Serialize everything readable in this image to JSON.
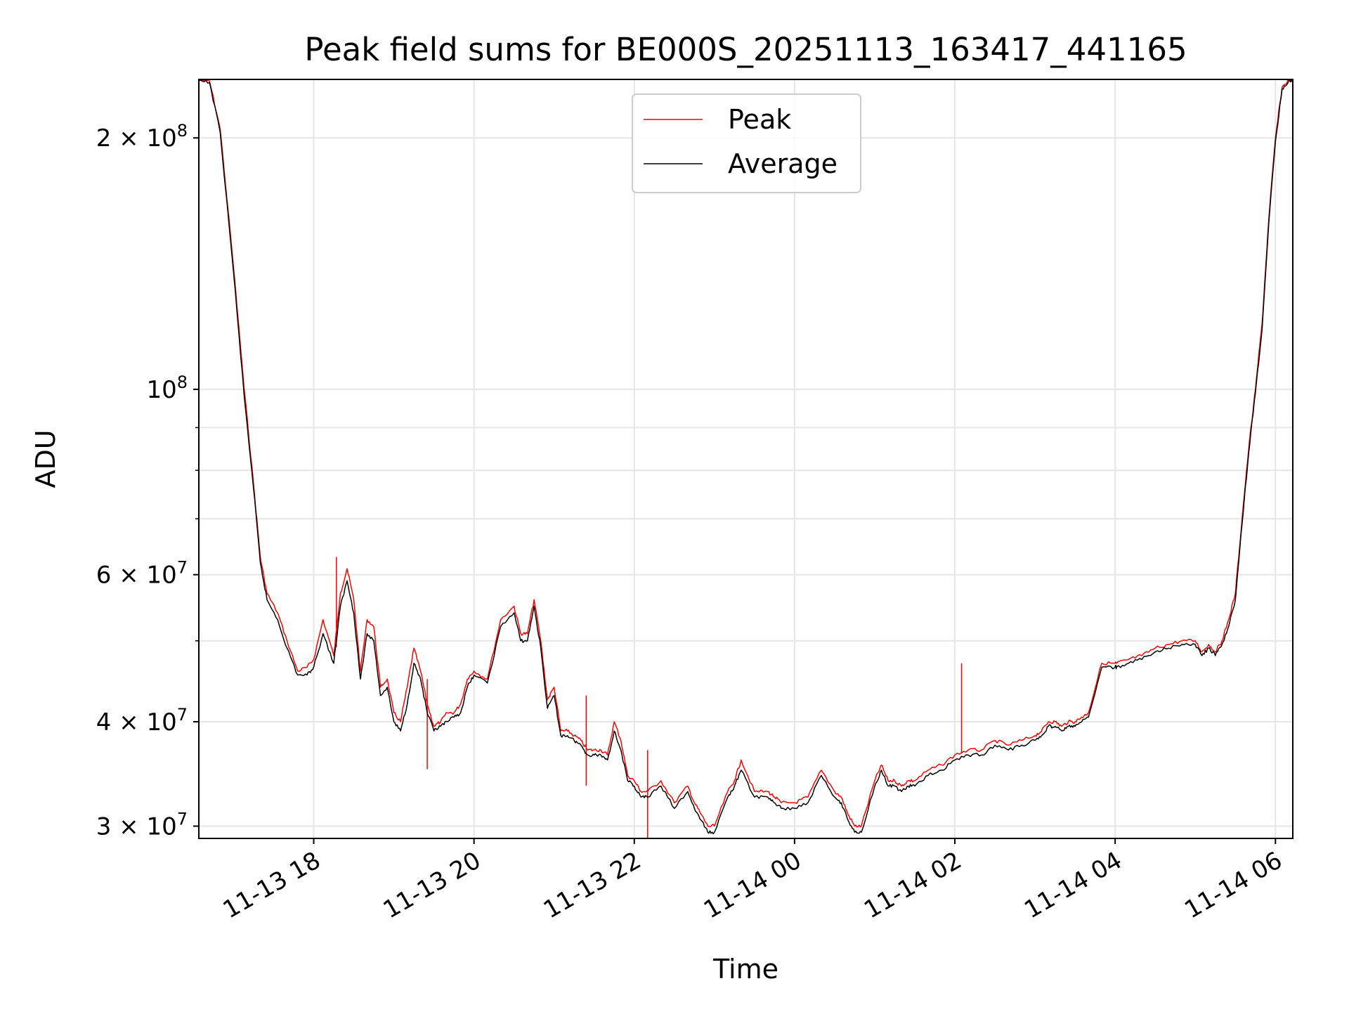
{
  "chart_data": {
    "type": "line",
    "title": "Peak field sums for BE000S_20251113_163417_441165",
    "xlabel": "Time",
    "ylabel": "ADU",
    "yscale": "log",
    "grid": true,
    "legend_position": "top-center",
    "xlim": [
      "11-13 16:34",
      "11-14 06:13"
    ],
    "ylim": [
      29000000,
      235000000
    ],
    "x_ticks": [
      "11-13 18",
      "11-13 20",
      "11-13 22",
      "11-14 00",
      "11-14 02",
      "11-14 04",
      "11-14 06"
    ],
    "y_ticks": [
      {
        "value": 30000000,
        "mantissa": "3",
        "exponent": "7"
      },
      {
        "value": 40000000,
        "mantissa": "4",
        "exponent": "7"
      },
      {
        "value": 60000000,
        "mantissa": "6",
        "exponent": "7"
      },
      {
        "value": 100000000,
        "mantissa": "",
        "exponent": "8"
      },
      {
        "value": 200000000,
        "mantissa": "2",
        "exponent": "8"
      }
    ],
    "series": [
      {
        "name": "Peak",
        "color": "#ff0000",
        "x": [
          "11-13 16:34",
          "11-13 16:42",
          "11-13 16:50",
          "11-13 17:00",
          "11-13 17:08",
          "11-13 17:15",
          "11-13 17:20",
          "11-13 17:25",
          "11-13 17:33",
          "11-13 17:40",
          "11-13 17:48",
          "11-13 17:55",
          "11-13 18:00",
          "11-13 18:07",
          "11-13 18:15",
          "11-13 18:20",
          "11-13 18:25",
          "11-13 18:30",
          "11-13 18:35",
          "11-13 18:40",
          "11-13 18:45",
          "11-13 18:50",
          "11-13 18:55",
          "11-13 19:00",
          "11-13 19:05",
          "11-13 19:10",
          "11-13 19:15",
          "11-13 19:20",
          "11-13 19:25",
          "11-13 19:30",
          "11-13 19:35",
          "11-13 19:40",
          "11-13 19:45",
          "11-13 19:50",
          "11-13 19:55",
          "11-13 20:00",
          "11-13 20:10",
          "11-13 20:20",
          "11-13 20:30",
          "11-13 20:35",
          "11-13 20:40",
          "11-13 20:45",
          "11-13 20:50",
          "11-13 20:55",
          "11-13 21:00",
          "11-13 21:05",
          "11-13 21:10",
          "11-13 21:15",
          "11-13 21:20",
          "11-13 21:25",
          "11-13 21:30",
          "11-13 21:35",
          "11-13 21:40",
          "11-13 21:45",
          "11-13 21:50",
          "11-13 21:55",
          "11-13 22:00",
          "11-13 22:05",
          "11-13 22:10",
          "11-13 22:20",
          "11-13 22:30",
          "11-13 22:40",
          "11-13 22:45",
          "11-13 22:50",
          "11-13 22:55",
          "11-13 23:00",
          "11-13 23:10",
          "11-13 23:15",
          "11-13 23:20",
          "11-13 23:30",
          "11-13 23:40",
          "11-13 23:45",
          "11-13 23:50",
          "11-14 00:00",
          "11-14 00:10",
          "11-14 00:20",
          "11-14 00:30",
          "11-14 00:35",
          "11-14 00:40",
          "11-14 00:45",
          "11-14 00:50",
          "11-14 01:00",
          "11-14 01:05",
          "11-14 01:10",
          "11-14 01:15",
          "11-14 01:20",
          "11-14 01:25",
          "11-14 01:30",
          "11-14 01:40",
          "11-14 01:50",
          "11-14 02:00",
          "11-14 02:10",
          "11-14 02:20",
          "11-14 02:30",
          "11-14 02:40",
          "11-14 02:50",
          "11-14 03:00",
          "11-14 03:05",
          "11-14 03:10",
          "11-14 03:15",
          "11-14 03:20",
          "11-14 03:25",
          "11-14 03:30",
          "11-14 03:35",
          "11-14 03:40",
          "11-14 03:50",
          "11-14 04:00",
          "11-14 04:01",
          "11-14 04:10",
          "11-14 04:20",
          "11-14 04:30",
          "11-14 04:40",
          "11-14 04:50",
          "11-14 05:00",
          "11-14 05:05",
          "11-14 05:10",
          "11-14 05:15",
          "11-14 05:20",
          "11-14 05:25",
          "11-14 05:30",
          "11-14 05:35",
          "11-14 05:40",
          "11-14 05:45",
          "11-14 05:50",
          "11-14 05:55",
          "11-14 06:00",
          "11-14 06:05",
          "11-14 06:10",
          "11-14 06:13"
        ],
        "y": [
          235000000,
          234000000,
          205000000,
          140000000,
          100000000,
          77000000,
          63000000,
          57000000,
          54000000,
          50000000,
          46000000,
          46500000,
          47500000,
          53000000,
          48000000,
          57000000,
          61000000,
          56000000,
          46000000,
          53000000,
          52000000,
          44000000,
          45000000,
          41000000,
          40000000,
          44000000,
          49000000,
          46000000,
          42000000,
          39500000,
          40000000,
          41000000,
          41000000,
          42000000,
          45000000,
          46000000,
          45000000,
          53000000,
          55000000,
          51000000,
          51000000,
          56000000,
          50000000,
          42500000,
          44000000,
          39000000,
          39000000,
          38500000,
          38000000,
          37000000,
          37000000,
          37000000,
          36500000,
          40000000,
          38000000,
          34500000,
          34000000,
          33000000,
          33000000,
          34000000,
          32000000,
          33500000,
          32000000,
          31000000,
          30000000,
          30000000,
          33000000,
          34000000,
          36000000,
          33000000,
          33000000,
          32500000,
          32000000,
          32000000,
          32500000,
          35000000,
          33000000,
          32500000,
          31000000,
          30000000,
          30000000,
          34000000,
          35500000,
          34000000,
          34000000,
          33500000,
          34000000,
          34000000,
          35000000,
          35500000,
          36500000,
          37000000,
          37000000,
          38000000,
          37500000,
          38000000,
          38500000,
          39000000,
          40000000,
          40000000,
          39500000,
          40000000,
          40000000,
          40500000,
          41000000,
          47000000,
          47000000,
          47000000,
          47500000,
          48000000,
          49000000,
          49500000,
          50000000,
          50000000,
          48500000,
          49500000,
          48500000,
          50000000,
          53000000,
          57000000,
          70000000,
          85000000,
          100000000,
          120000000,
          160000000,
          200000000,
          230000000,
          235000000,
          235000000
        ],
        "spikes": [
          {
            "x": "11-13 18:17",
            "y": 63000000
          },
          {
            "x": "11-13 19:25",
            "y": 45000000
          },
          {
            "x": "11-13 21:24",
            "y": 43000000
          },
          {
            "x": "11-13 22:10",
            "y": 37000000
          },
          {
            "x": "11-14 02:05",
            "y": 47000000
          }
        ]
      },
      {
        "name": "Average",
        "color": "#000000",
        "x": [
          "11-13 16:34",
          "11-13 16:42",
          "11-13 16:50",
          "11-13 17:00",
          "11-13 17:08",
          "11-13 17:15",
          "11-13 17:20",
          "11-13 17:25",
          "11-13 17:33",
          "11-13 17:40",
          "11-13 17:48",
          "11-13 17:55",
          "11-13 18:00",
          "11-13 18:07",
          "11-13 18:15",
          "11-13 18:20",
          "11-13 18:25",
          "11-13 18:30",
          "11-13 18:35",
          "11-13 18:40",
          "11-13 18:45",
          "11-13 18:50",
          "11-13 18:55",
          "11-13 19:00",
          "11-13 19:05",
          "11-13 19:10",
          "11-13 19:15",
          "11-13 19:20",
          "11-13 19:25",
          "11-13 19:30",
          "11-13 19:35",
          "11-13 19:40",
          "11-13 19:45",
          "11-13 19:50",
          "11-13 19:55",
          "11-13 20:00",
          "11-13 20:10",
          "11-13 20:20",
          "11-13 20:30",
          "11-13 20:35",
          "11-13 20:40",
          "11-13 20:45",
          "11-13 20:50",
          "11-13 20:55",
          "11-13 21:00",
          "11-13 21:05",
          "11-13 21:10",
          "11-13 21:15",
          "11-13 21:20",
          "11-13 21:25",
          "11-13 21:30",
          "11-13 21:35",
          "11-13 21:40",
          "11-13 21:45",
          "11-13 21:50",
          "11-13 21:55",
          "11-13 22:00",
          "11-13 22:05",
          "11-13 22:10",
          "11-13 22:20",
          "11-13 22:30",
          "11-13 22:40",
          "11-13 22:45",
          "11-13 22:50",
          "11-13 22:55",
          "11-13 23:00",
          "11-13 23:10",
          "11-13 23:15",
          "11-13 23:20",
          "11-13 23:30",
          "11-13 23:40",
          "11-13 23:45",
          "11-13 23:50",
          "11-14 00:00",
          "11-14 00:10",
          "11-14 00:20",
          "11-14 00:30",
          "11-14 00:35",
          "11-14 00:40",
          "11-14 00:45",
          "11-14 00:50",
          "11-14 01:00",
          "11-14 01:05",
          "11-14 01:10",
          "11-14 01:15",
          "11-14 01:20",
          "11-14 01:25",
          "11-14 01:30",
          "11-14 01:40",
          "11-14 01:50",
          "11-14 02:00",
          "11-14 02:10",
          "11-14 02:20",
          "11-14 02:30",
          "11-14 02:40",
          "11-14 02:50",
          "11-14 03:00",
          "11-14 03:05",
          "11-14 03:10",
          "11-14 03:15",
          "11-14 03:20",
          "11-14 03:25",
          "11-14 03:30",
          "11-14 03:35",
          "11-14 03:40",
          "11-14 03:50",
          "11-14 04:00",
          "11-14 04:01",
          "11-14 04:10",
          "11-14 04:20",
          "11-14 04:30",
          "11-14 04:40",
          "11-14 04:50",
          "11-14 05:00",
          "11-14 05:05",
          "11-14 05:10",
          "11-14 05:15",
          "11-14 05:20",
          "11-14 05:25",
          "11-14 05:30",
          "11-14 05:35",
          "11-14 05:40",
          "11-14 05:45",
          "11-14 05:50",
          "11-14 05:55",
          "11-14 06:00",
          "11-14 06:05",
          "11-14 06:10",
          "11-14 06:13"
        ],
        "y": [
          234000000,
          233000000,
          203000000,
          138000000,
          98000000,
          76000000,
          62000000,
          56000000,
          53000000,
          49000000,
          45500000,
          45500000,
          46500000,
          51000000,
          47000000,
          55000000,
          59000000,
          54000000,
          45000000,
          51000000,
          50000000,
          43000000,
          44000000,
          40000000,
          39000000,
          42000000,
          47000000,
          45000000,
          41000000,
          39000000,
          39500000,
          40000000,
          40500000,
          41000000,
          44000000,
          45500000,
          44500000,
          52000000,
          54000000,
          50000000,
          50000000,
          55000000,
          49000000,
          41500000,
          43000000,
          38500000,
          38500000,
          38000000,
          37500000,
          36500000,
          36500000,
          36500000,
          36000000,
          39000000,
          37000000,
          34000000,
          33500000,
          32500000,
          32500000,
          33500000,
          31500000,
          33000000,
          31500000,
          30500000,
          29500000,
          29500000,
          32500000,
          33500000,
          35000000,
          32500000,
          32500000,
          32000000,
          31500000,
          31500000,
          32000000,
          34500000,
          32500000,
          32000000,
          30500000,
          29500000,
          29500000,
          33500000,
          35000000,
          33500000,
          33500000,
          33000000,
          33500000,
          33500000,
          34500000,
          35000000,
          36000000,
          36500000,
          36500000,
          37500000,
          37000000,
          37500000,
          38000000,
          38500000,
          39500000,
          39500000,
          39000000,
          39500000,
          39500000,
          40000000,
          40500000,
          46500000,
          46500000,
          46500000,
          47000000,
          47500000,
          48500000,
          49000000,
          49500000,
          49500000,
          48000000,
          49000000,
          48000000,
          49500000,
          52000000,
          56000000,
          69000000,
          84000000,
          99000000,
          118000000,
          158000000,
          198000000,
          229000000,
          234000000,
          234000000
        ]
      }
    ]
  }
}
